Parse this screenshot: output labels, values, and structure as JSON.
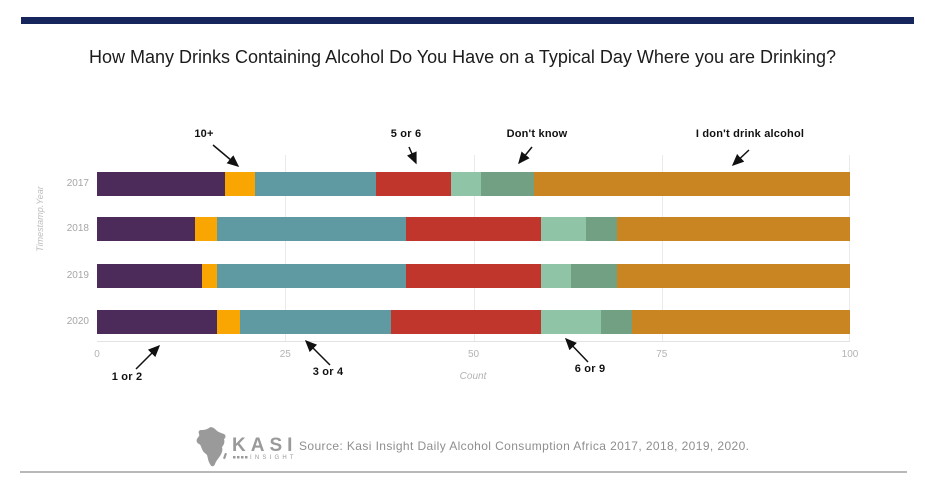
{
  "header": {
    "accent_bar_color": "#16265d",
    "title": "How Many Drinks Containing Alcohol Do You Have on a Typical Day Where you are Drinking?"
  },
  "chart_data": {
    "type": "bar",
    "orientation": "horizontal",
    "stacked": true,
    "xlabel": "Count",
    "ylabel": "Timestamp.Year",
    "xlim": [
      0,
      100
    ],
    "xticks": [
      0,
      25,
      50,
      75,
      100
    ],
    "grid": "vertical",
    "legend": "none (annotated with arrows)",
    "categories": [
      "2017",
      "2018",
      "2019",
      "2020"
    ],
    "series": [
      {
        "name": "1 or 2",
        "color": "#4c2a59",
        "values": [
          17,
          13,
          14,
          16
        ]
      },
      {
        "name": "10+",
        "color": "#f9a602",
        "values": [
          4,
          3,
          2,
          3
        ]
      },
      {
        "name": "3 or 4",
        "color": "#5f9aa3",
        "values": [
          16,
          25,
          25,
          20
        ]
      },
      {
        "name": "5 or 6",
        "color": "#c0362c",
        "values": [
          10,
          18,
          18,
          20
        ]
      },
      {
        "name": "6 or 9",
        "color": "#8fc4a6",
        "values": [
          4,
          6,
          4,
          8
        ]
      },
      {
        "name": "Don't know",
        "color": "#71a083",
        "values": [
          7,
          4,
          6,
          4
        ]
      },
      {
        "name": "I don't drink alcohol",
        "color": "#c98522",
        "values": [
          42,
          31,
          31,
          29
        ]
      }
    ],
    "annotations": [
      {
        "label": "10+"
      },
      {
        "label": "5 or 6"
      },
      {
        "label": "Don't know"
      },
      {
        "label": "I don't drink alcohol"
      },
      {
        "label": "1 or 2"
      },
      {
        "label": "3 or 4"
      },
      {
        "label": "6 or 9"
      }
    ]
  },
  "footer": {
    "logo_text": "KASI",
    "logo_subtext": "INSIGHT",
    "source": "Source: Kasi Insight Daily Alcohol Consumption Africa 2017, 2018, 2019, 2020."
  }
}
